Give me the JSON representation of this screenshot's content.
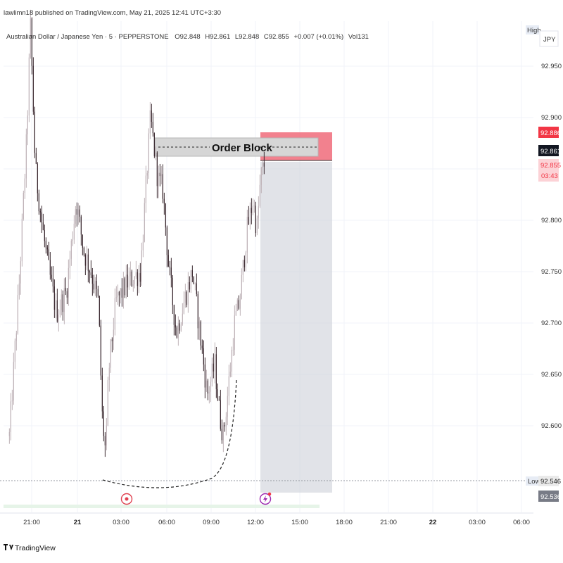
{
  "header": {
    "publish_line": "lawlimn18 published on TradingView.com, May 21, 2025 12:41 UTC+3:30",
    "symbol_line": "Australian Dollar / Japanese Yen · 5 · PEPPERSTONE",
    "ohlc": {
      "o": "O92.848",
      "h": "H92.861",
      "l": "L92.848",
      "c": "C92.855",
      "chg": "+0.007 (+0.01%)",
      "vol": "Vol131"
    }
  },
  "axis": {
    "currency": "JPY",
    "high_label": "High",
    "low_label": "Low",
    "low_value": "92.546",
    "bottom_value": "92.536",
    "price_ticks": [
      "92.950",
      "92.900",
      "92.800",
      "92.750",
      "92.700",
      "92.650",
      "92.600"
    ],
    "time_ticks": [
      "21:00",
      "21",
      "03:00",
      "06:00",
      "09:00",
      "12:00",
      "15:00",
      "18:00",
      "21:00",
      "22",
      "03:00",
      "06:00"
    ],
    "bold_time_ticks": [
      "21",
      "22"
    ]
  },
  "badges": {
    "red_price": "92.886",
    "last_price": "92.861",
    "current_price": "92.855",
    "countdown": "03:43"
  },
  "annotations": {
    "order_block_label": "Order Block"
  },
  "branding": {
    "logo_text": "TradingView"
  },
  "colors": {
    "up": "#bfb3b8",
    "down": "#3b2a30",
    "order_block_fill": "#f06b7a",
    "red_badge": "#f23645",
    "current_badge": "#fcd2d6",
    "gray_zone": "#d1d4dc"
  },
  "chart_data": {
    "type": "candlestick",
    "symbol": "AUDJPY",
    "timeframe": "5",
    "ylim": [
      92.53,
      93.0
    ],
    "y_ticks": [
      92.6,
      92.65,
      92.7,
      92.75,
      92.8,
      92.85,
      92.9,
      92.95
    ],
    "time_range": [
      "20 19:30",
      "21 12:40"
    ],
    "price_path": [
      [
        "19:30",
        92.59
      ],
      [
        "20:10",
        92.74
      ],
      [
        "20:40",
        92.88
      ],
      [
        "20:55",
        92.99
      ],
      [
        "21:15",
        92.85
      ],
      [
        "21:45",
        92.79
      ],
      [
        "22:10",
        92.75
      ],
      [
        "22:40",
        92.71
      ],
      [
        "23:20",
        92.73
      ],
      [
        "00:00",
        92.82
      ],
      [
        "00:30",
        92.77
      ],
      [
        "01:00",
        92.75
      ],
      [
        "01:30",
        92.72
      ],
      [
        "01:45",
        92.61
      ],
      [
        "02:00",
        92.57
      ],
      [
        "02:10",
        92.65
      ],
      [
        "02:40",
        92.72
      ],
      [
        "03:30",
        92.74
      ],
      [
        "04:20",
        92.75
      ],
      [
        "05:00",
        92.9
      ],
      [
        "05:30",
        92.84
      ],
      [
        "05:50",
        92.83
      ],
      [
        "06:15",
        92.75
      ],
      [
        "06:45",
        92.69
      ],
      [
        "07:15",
        92.72
      ],
      [
        "07:50",
        92.75
      ],
      [
        "08:20",
        92.69
      ],
      [
        "08:50",
        92.63
      ],
      [
        "09:20",
        92.66
      ],
      [
        "09:40",
        92.61
      ],
      [
        "09:55",
        92.59
      ],
      [
        "10:20",
        92.65
      ],
      [
        "10:40",
        92.7
      ],
      [
        "11:00",
        92.72
      ],
      [
        "11:30",
        92.79
      ],
      [
        "11:55",
        92.82
      ],
      [
        "12:10",
        92.79
      ],
      [
        "12:25",
        92.84
      ],
      [
        "12:40",
        92.855
      ]
    ],
    "session_high": 92.99,
    "session_low": 92.546,
    "order_block": {
      "top": 92.888,
      "bottom": 92.86,
      "label": "Order Block"
    },
    "gray_zone": {
      "top": 92.86,
      "bottom": 92.532
    },
    "gray_marker_box": {
      "top": 92.872,
      "bottom": 92.855
    },
    "sweep_curve": {
      "from": [
        "02:00",
        92.546
      ],
      "to": [
        "09:55",
        92.588
      ]
    },
    "low_line": 92.546
  }
}
